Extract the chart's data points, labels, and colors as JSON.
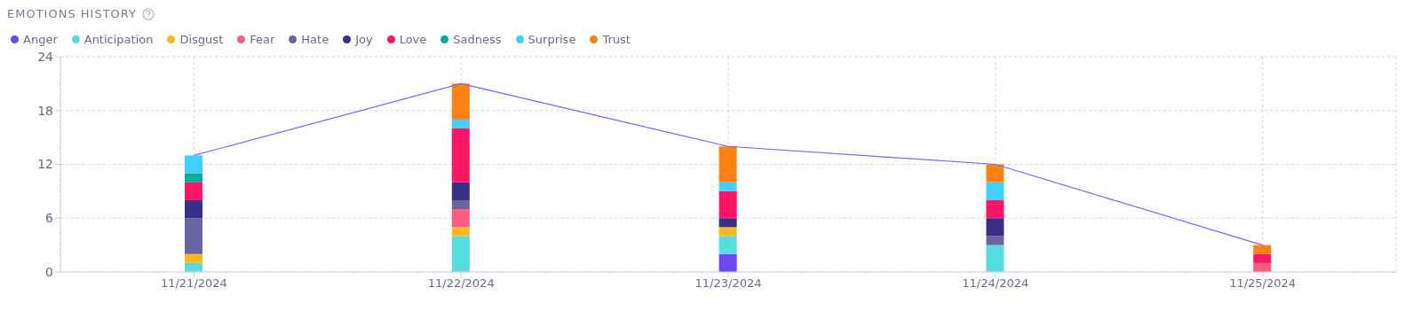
{
  "chart_data": {
    "type": "bar",
    "title": "EMOTIONS HISTORY",
    "stacked": true,
    "grid": true,
    "legend": "top left",
    "categories": [
      "11/21/2024",
      "11/22/2024",
      "11/23/2024",
      "11/24/2024",
      "11/25/2024"
    ],
    "ylim": [
      0,
      24
    ],
    "yticks": [
      0,
      6,
      12,
      18,
      24
    ],
    "series": [
      {
        "name": "Anger",
        "color": "#7047f5",
        "values": [
          0,
          0,
          2,
          0,
          0
        ]
      },
      {
        "name": "Anticipation",
        "color": "#55dde0",
        "values": [
          1,
          4,
          2,
          3,
          0
        ]
      },
      {
        "name": "Disgust",
        "color": "#fdb81e",
        "values": [
          1,
          1,
          1,
          0,
          0
        ]
      },
      {
        "name": "Fear",
        "color": "#ff5a80",
        "values": [
          0,
          2,
          0,
          0,
          1
        ]
      },
      {
        "name": "Hate",
        "color": "#6b64a3",
        "values": [
          4,
          1,
          0,
          1,
          0
        ]
      },
      {
        "name": "Joy",
        "color": "#3a2f86",
        "values": [
          2,
          2,
          1,
          2,
          0
        ]
      },
      {
        "name": "Love",
        "color": "#ff1566",
        "values": [
          2,
          6,
          3,
          2,
          1
        ]
      },
      {
        "name": "Sadness",
        "color": "#00ab9b",
        "values": [
          1,
          0,
          0,
          0,
          0
        ]
      },
      {
        "name": "Surprise",
        "color": "#40cfff",
        "values": [
          2,
          1,
          1,
          2,
          0
        ]
      },
      {
        "name": "Trust",
        "color": "#ff8113",
        "values": [
          0,
          4,
          4,
          2,
          1
        ]
      },
      {
        "type": "line",
        "color": "#7b61ff",
        "values": [
          13,
          21,
          14,
          12,
          3
        ]
      }
    ]
  }
}
